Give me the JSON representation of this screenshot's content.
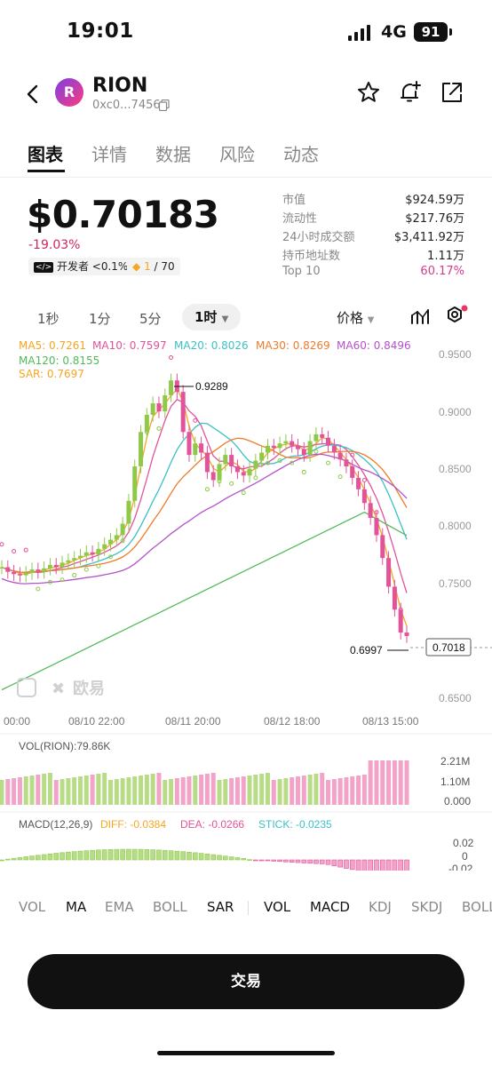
{
  "status_bar": {
    "time": "19:01",
    "network": "4G",
    "battery": "91"
  },
  "header": {
    "token_name": "RION",
    "token_address": "0xc0...7456",
    "logo_text": "R"
  },
  "tabs": [
    {
      "label": "图表",
      "active": true
    },
    {
      "label": "详情",
      "active": false
    },
    {
      "label": "数据",
      "active": false
    },
    {
      "label": "风险",
      "active": false
    },
    {
      "label": "动态",
      "active": false
    }
  ],
  "price": {
    "value": "$0.70183",
    "change": "-19.03%",
    "dev_chip": "开发者 <0.1%",
    "rank_chip_current": "1",
    "rank_chip_total": "/ 70"
  },
  "stats": [
    {
      "label": "市值",
      "value": "$924.59万"
    },
    {
      "label": "流动性",
      "value": "$217.76万"
    },
    {
      "label": "24小时成交额",
      "value": "$3,411.92万"
    },
    {
      "label": "持币地址数",
      "value": "1.11万"
    },
    {
      "label": "Top 10",
      "value": "60.17%"
    }
  ],
  "timeframes": [
    "1秒",
    "1分",
    "5分"
  ],
  "timeframe_active": "1时",
  "price_selector": "价格",
  "ma_legend": {
    "ma5": "MA5: 0.7261",
    "ma10": "MA10: 0.7597",
    "ma20": "MA20: 0.8026",
    "ma30": "MA30: 0.8269",
    "ma60": "MA60: 0.8496",
    "ma120": "MA120: 0.8155",
    "sar": "SAR: 0.7697"
  },
  "colors": {
    "up": "#8fc94a",
    "down": "#e2539a",
    "ma5": "#f5a623",
    "ma10": "#e2539a",
    "ma20": "#3cc0c6",
    "ma30": "#f07b2a",
    "ma60": "#b453c8",
    "ma120": "#52b95a"
  },
  "chart_data": {
    "type": "candlestick",
    "y_ticks": [
      "0.9500",
      "0.9000",
      "0.8500",
      "0.8000",
      "0.7500",
      "0.6500"
    ],
    "x_ticks": [
      "00:00",
      "08/10 22:00",
      "08/11 20:00",
      "08/12 18:00",
      "08/13 15:00"
    ],
    "high_label": "0.9289",
    "low_label": "0.6997",
    "current_price_label": "0.7018",
    "watermark": "欧易",
    "volume": {
      "title": "VOL(RION):79.86K",
      "ticks": [
        "2.21M",
        "1.10M",
        "0.000"
      ]
    },
    "macd": {
      "title": "MACD(12,26,9)",
      "diff": "DIFF: -0.0384",
      "dea": "DEA: -0.0266",
      "stick": "STICK: -0.0235",
      "ticks": [
        "0.02",
        "0",
        "-0.02"
      ]
    }
  },
  "indicators": [
    {
      "label": "VOL",
      "on": false
    },
    {
      "label": "MA",
      "on": true
    },
    {
      "label": "EMA",
      "on": false
    },
    {
      "label": "BOLL",
      "on": false
    },
    {
      "label": "SAR",
      "on": true
    },
    {
      "label": "VOL",
      "on": true
    },
    {
      "label": "MACD",
      "on": true
    },
    {
      "label": "KDJ",
      "on": false
    },
    {
      "label": "SKDJ",
      "on": false
    },
    {
      "label": "BOLL",
      "on": false
    }
  ],
  "trade_button": "交易"
}
